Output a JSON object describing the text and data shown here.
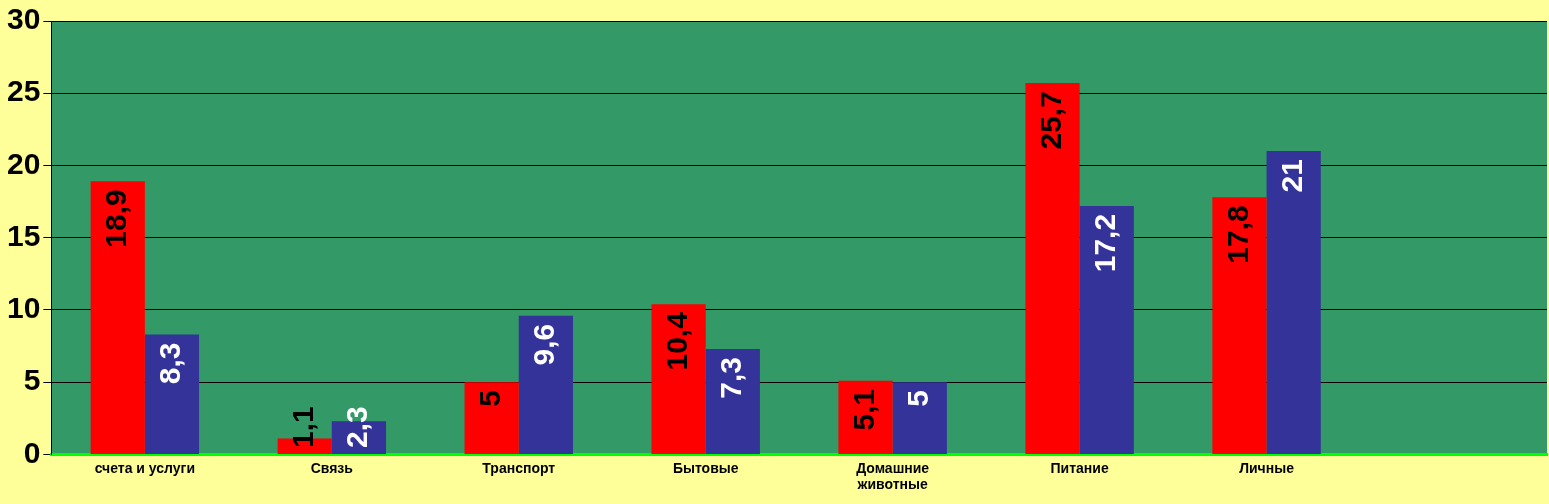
{
  "chart_data": {
    "type": "bar",
    "categories": [
      "счета и услуги",
      "Связь",
      "Транспорт",
      "Бытовые",
      "Домашние животные",
      "Питание",
      "Личные",
      null
    ],
    "series": [
      {
        "color": "#ff0000",
        "values": [
          18.9,
          1.1,
          5,
          10.4,
          5.1,
          25.7,
          17.8,
          null
        ],
        "value_labels": [
          "18,9",
          "1,1",
          "5",
          "10,4",
          "5,1",
          "25,7",
          "17,8",
          null
        ]
      },
      {
        "color": "#333399",
        "values": [
          8.3,
          2.3,
          9.6,
          7.3,
          5,
          17.2,
          21,
          null
        ],
        "value_labels": [
          "8,3",
          "2,3",
          "9,6",
          "7,3",
          "5",
          "17,2",
          "21",
          null
        ]
      }
    ],
    "ylim": [
      0,
      30
    ],
    "yticks": [
      0,
      5,
      10,
      15,
      20,
      25,
      30
    ],
    "grid": "y",
    "legend": false
  }
}
